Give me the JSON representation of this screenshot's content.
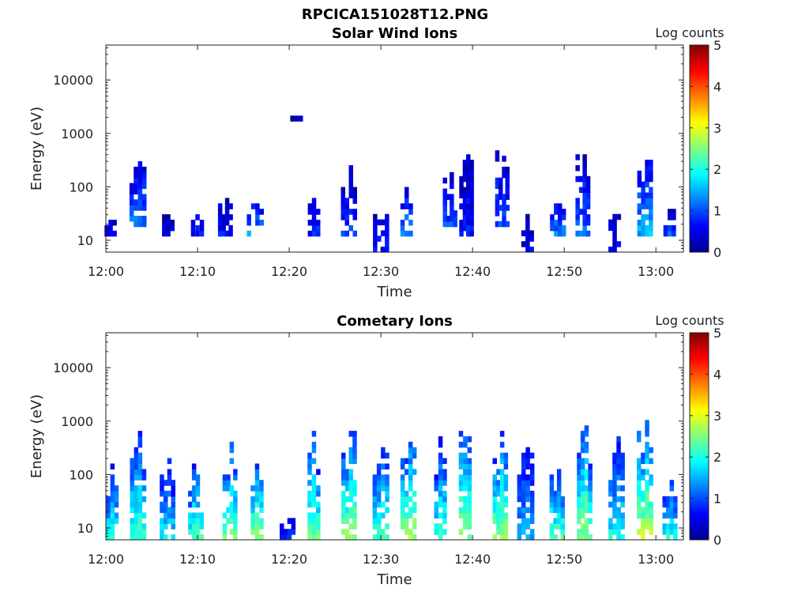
{
  "figure_title": "RPCICA151028T12.PNG",
  "chart_data": [
    {
      "type": "heatmap",
      "title": "Solar Wind Ions",
      "xlabel": "Time",
      "ylabel": "Energy (eV)",
      "x_ticks": [
        "12:00",
        "12:10",
        "12:20",
        "12:30",
        "12:40",
        "12:50",
        "13:00"
      ],
      "y_ticks": [
        "10",
        "100",
        "1000",
        "10000"
      ],
      "y_scale": "log",
      "ylim": [
        6,
        45000
      ],
      "xlim_minutes": [
        0,
        63
      ],
      "colorbar": {
        "label": "Log counts",
        "ticks": [
          "0",
          "1",
          "2",
          "3",
          "4",
          "5"
        ],
        "range": [
          0,
          5
        ],
        "colormap": "jet"
      },
      "bursts": [
        {
          "t": 0.5,
          "emin": 12,
          "emax": 25,
          "level": 0.5
        },
        {
          "t": 3.5,
          "emin": 18,
          "emax": 300,
          "level": 1.2
        },
        {
          "t": 6.8,
          "emin": 12,
          "emax": 30,
          "level": 0.6
        },
        {
          "t": 10.0,
          "emin": 12,
          "emax": 30,
          "level": 0.7
        },
        {
          "t": 13.0,
          "emin": 12,
          "emax": 55,
          "level": 0.7
        },
        {
          "t": 16.3,
          "emin": 12,
          "emax": 45,
          "level": 1.3
        },
        {
          "t": 20.8,
          "emin": 1700,
          "emax": 1700,
          "level": 0.5
        },
        {
          "t": 22.7,
          "emin": 12,
          "emax": 60,
          "level": 0.8
        },
        {
          "t": 26.5,
          "emin": 12,
          "emax": 220,
          "level": 0.9
        },
        {
          "t": 30.0,
          "emin": 6,
          "emax": 40,
          "level": 0.7
        },
        {
          "t": 32.8,
          "emin": 12,
          "emax": 80,
          "level": 1.4
        },
        {
          "t": 37.5,
          "emin": 18,
          "emax": 150,
          "level": 1.0
        },
        {
          "t": 39.3,
          "emin": 12,
          "emax": 550,
          "level": 0.7
        },
        {
          "t": 43.2,
          "emin": 18,
          "emax": 450,
          "level": 1.0
        },
        {
          "t": 46.0,
          "emin": 6,
          "emax": 25,
          "level": 0.5
        },
        {
          "t": 49.3,
          "emin": 12,
          "emax": 45,
          "level": 1.3
        },
        {
          "t": 52.0,
          "emin": 12,
          "emax": 400,
          "level": 1.1
        },
        {
          "t": 55.5,
          "emin": 6,
          "emax": 25,
          "level": 0.5
        },
        {
          "t": 58.8,
          "emin": 12,
          "emax": 300,
          "level": 1.5
        },
        {
          "t": 61.5,
          "emin": 12,
          "emax": 35,
          "level": 1.0
        }
      ]
    },
    {
      "type": "heatmap",
      "title": "Cometary Ions",
      "xlabel": "Time",
      "ylabel": "Energy (eV)",
      "x_ticks": [
        "12:00",
        "12:10",
        "12:20",
        "12:30",
        "12:40",
        "12:50",
        "13:00"
      ],
      "y_ticks": [
        "10",
        "100",
        "1000",
        "10000"
      ],
      "y_scale": "log",
      "ylim": [
        6,
        45000
      ],
      "xlim_minutes": [
        0,
        63
      ],
      "colorbar": {
        "label": "Log counts",
        "ticks": [
          "0",
          "1",
          "2",
          "3",
          "4",
          "5"
        ],
        "range": [
          0,
          5
        ],
        "colormap": "jet"
      },
      "bursts": [
        {
          "t": 0.7,
          "emin": 6,
          "emax": 150,
          "level": 2.0
        },
        {
          "t": 3.5,
          "emin": 6,
          "emax": 600,
          "level": 2.2
        },
        {
          "t": 6.7,
          "emin": 6,
          "emax": 200,
          "level": 1.8
        },
        {
          "t": 9.8,
          "emin": 6,
          "emax": 150,
          "level": 2.2
        },
        {
          "t": 13.5,
          "emin": 6,
          "emax": 380,
          "level": 2.5
        },
        {
          "t": 16.5,
          "emin": 6,
          "emax": 150,
          "level": 2.6
        },
        {
          "t": 19.8,
          "emin": 6,
          "emax": 15,
          "level": 0.8
        },
        {
          "t": 22.7,
          "emin": 6,
          "emax": 600,
          "level": 2.4
        },
        {
          "t": 26.5,
          "emin": 6,
          "emax": 600,
          "level": 2.6
        },
        {
          "t": 30.0,
          "emin": 6,
          "emax": 300,
          "level": 2.2
        },
        {
          "t": 33.0,
          "emin": 6,
          "emax": 450,
          "level": 2.7
        },
        {
          "t": 36.5,
          "emin": 6,
          "emax": 450,
          "level": 2.1
        },
        {
          "t": 39.2,
          "emin": 6,
          "emax": 650,
          "level": 2.6
        },
        {
          "t": 43.0,
          "emin": 6,
          "emax": 600,
          "level": 2.6
        },
        {
          "t": 45.8,
          "emin": 6,
          "emax": 350,
          "level": 1.5
        },
        {
          "t": 49.2,
          "emin": 6,
          "emax": 150,
          "level": 2.3
        },
        {
          "t": 52.2,
          "emin": 6,
          "emax": 1000,
          "level": 2.6
        },
        {
          "t": 55.7,
          "emin": 6,
          "emax": 450,
          "level": 1.9
        },
        {
          "t": 58.8,
          "emin": 6,
          "emax": 1200,
          "level": 2.8
        },
        {
          "t": 61.5,
          "emin": 6,
          "emax": 80,
          "level": 2.0
        }
      ]
    }
  ]
}
